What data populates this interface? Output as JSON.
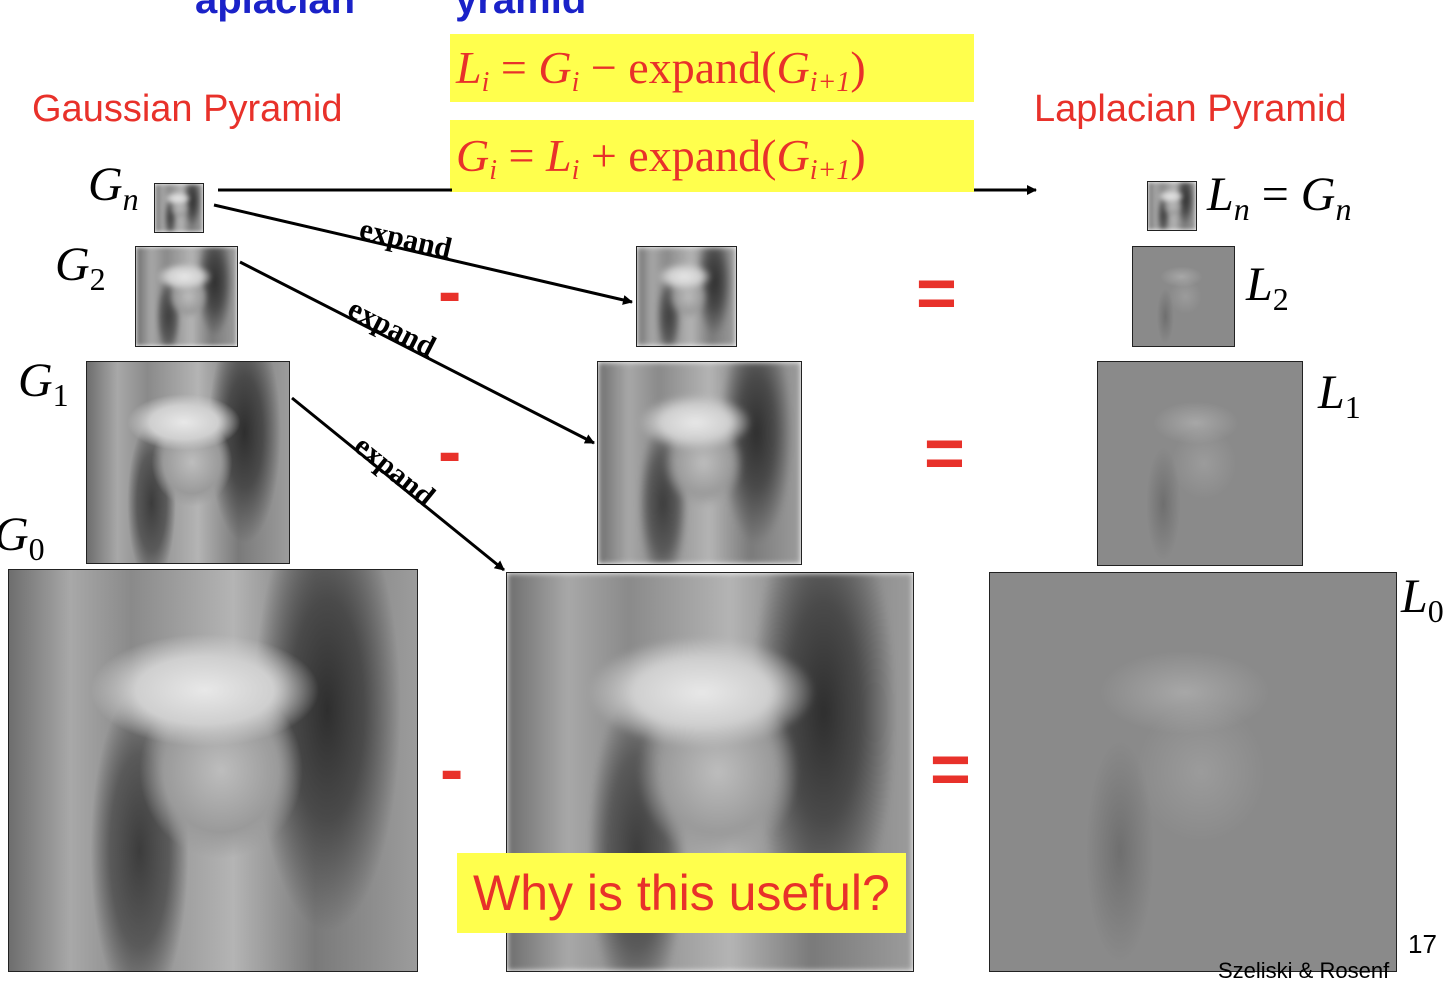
{
  "slide": {
    "title_partial": [
      "aplacian",
      "yramid"
    ],
    "gaussian_title": "Gaussian Pyramid",
    "laplacian_title": "Laplacian Pyramid",
    "formula_top": {
      "lhs": "L",
      "lhs_sub": "i",
      "eq": " = ",
      "g": "G",
      "g_sub": "i",
      "op": " − expand(",
      "g2": "G",
      "g2_sub": "i+1",
      "close": ")"
    },
    "formula_bottom": {
      "lhs": "G",
      "lhs_sub": "i",
      "eq": " = ",
      "l": "L",
      "l_sub": "i",
      "op": " + expand(",
      "g2": "G",
      "g2_sub": "i+1",
      "close": ")"
    },
    "labels": {
      "gn": {
        "main": "G",
        "sub": "n"
      },
      "g2": {
        "main": "G",
        "sub": "2"
      },
      "g1": {
        "main": "G",
        "sub": "1"
      },
      "g0": {
        "main": "G",
        "sub": "0"
      },
      "ln_eq": {
        "main": "L",
        "sub": "n",
        "eq": " = ",
        "main2": "G",
        "sub2": "n"
      },
      "l2": {
        "main": "L",
        "sub": "2"
      },
      "l1": {
        "main": "L",
        "sub": "1"
      },
      "l0": {
        "main": "L",
        "sub": "0"
      }
    },
    "expand_label": "expand",
    "minus": "-",
    "equals": "=",
    "question": "Why is this useful?",
    "page_number": "17",
    "footer_partial": "Szeliski & Rosenf"
  }
}
